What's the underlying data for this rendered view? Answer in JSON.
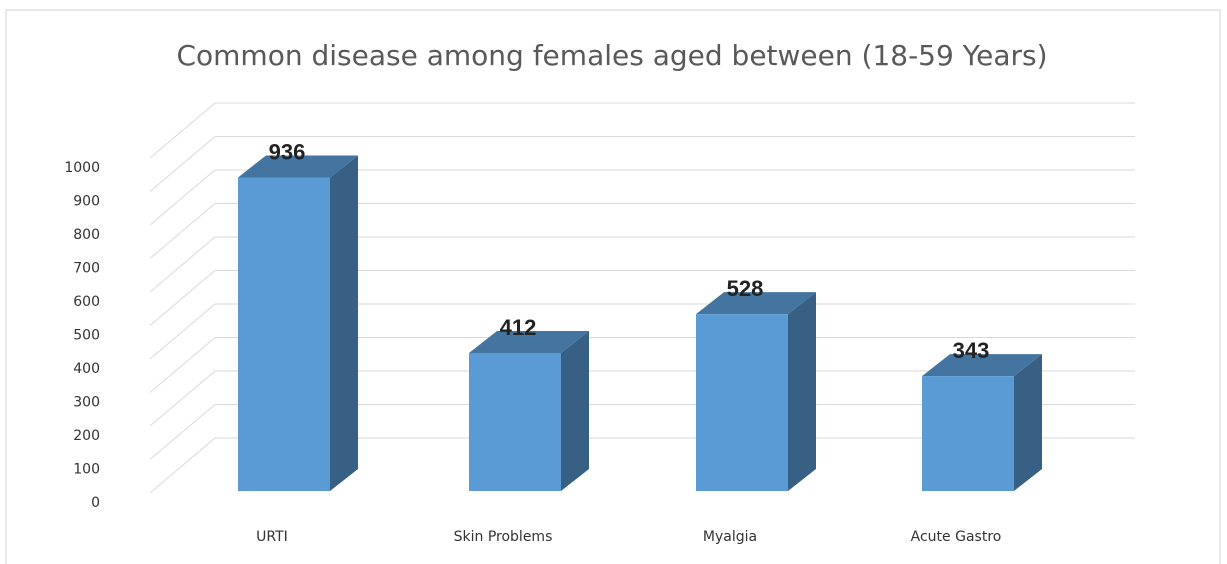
{
  "chart_data": {
    "type": "bar",
    "title": "Common disease among females aged between (18-59 Years)",
    "categories": [
      "URTI",
      "Skin Problems",
      "Myalgia",
      "Acute Gastro"
    ],
    "values": [
      936,
      412,
      528,
      343
    ],
    "color": "#5b9bd5",
    "ylim": [
      0,
      1000
    ],
    "yticks": [
      0,
      100,
      200,
      300,
      400,
      500,
      600,
      700,
      800,
      900,
      1000
    ],
    "grid": true
  }
}
